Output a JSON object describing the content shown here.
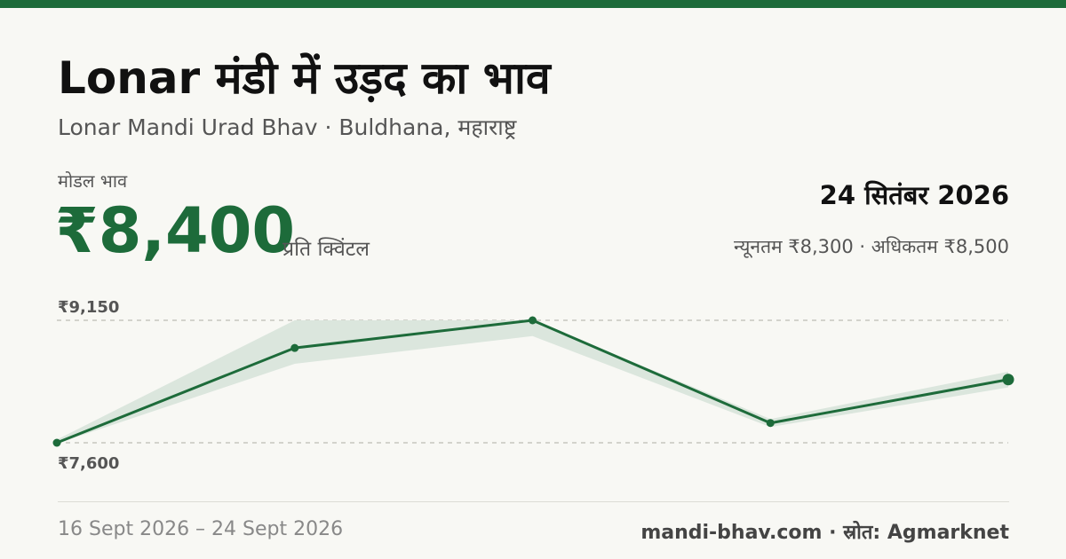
{
  "header": {
    "title": "Lonar मंडी में उड़द का भाव",
    "subtitle": "Lonar Mandi Urad Bhav · Buldhana, महाराष्ट्र"
  },
  "price": {
    "label": "मोडल भाव",
    "value": "₹8,400",
    "unit": "प्रति क्विंटल",
    "date": "24 सितंबर 2026",
    "minmax": "न्यूनतम ₹8,300 · अधिकतम ₹8,500"
  },
  "footer": {
    "range": "16 Sept 2026 – 24 Sept 2026",
    "source": "mandi-bhav.com · स्रोत: Agmarknet"
  },
  "colors": {
    "accent": "#1d6b3a",
    "band": "#dbe6dd",
    "gridline": "#bdbdb5"
  },
  "chart_data": {
    "type": "line",
    "y_tick_labels": [
      "₹9,150",
      "₹7,600"
    ],
    "ylim": [
      7600,
      9150
    ],
    "modal": [
      7600,
      8800,
      9150,
      7850,
      8400
    ],
    "min": [
      7590,
      8600,
      8950,
      7800,
      8300
    ],
    "max": [
      7640,
      9150,
      9150,
      7900,
      8500
    ],
    "grid": true,
    "legend": "none"
  }
}
